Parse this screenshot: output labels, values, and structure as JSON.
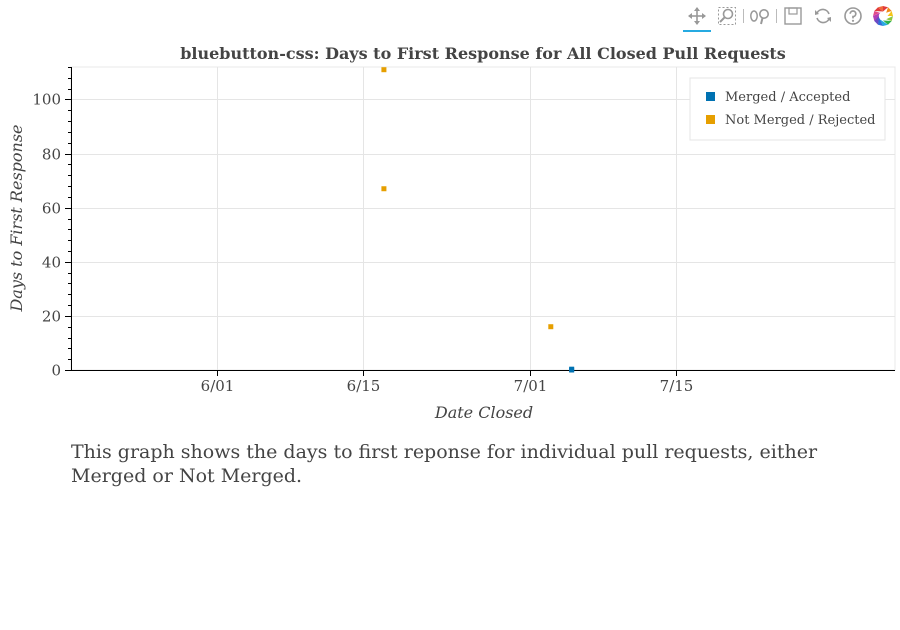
{
  "toolbar": {
    "tools": [
      {
        "name": "pan-icon",
        "active": true
      },
      {
        "name": "box-zoom-icon",
        "active": false
      },
      {
        "name": "wheel-zoom-icon",
        "active": false
      },
      {
        "name": "save-icon",
        "active": false
      },
      {
        "name": "reset-icon",
        "active": false
      },
      {
        "name": "help-icon",
        "active": false
      },
      {
        "name": "bokeh-logo-icon",
        "active": false
      }
    ]
  },
  "chart_data": {
    "type": "scatter",
    "title": "bluebutton-css: Days to First Response for All Closed Pull Requests",
    "xlabel": "Date Closed",
    "ylabel": "Days to First Response",
    "x_axis_type": "date",
    "xlim": [
      "2017-05-18",
      "2017-08-05"
    ],
    "ylim": [
      0,
      112
    ],
    "x_tick_labels": [
      {
        "date": "2017-06-01",
        "label": "6/01"
      },
      {
        "date": "2017-06-15",
        "label": "6/15"
      },
      {
        "date": "2017-07-01",
        "label": "7/01"
      },
      {
        "date": "2017-07-15",
        "label": "7/15"
      }
    ],
    "y_ticks": [
      0,
      20,
      40,
      60,
      80,
      100
    ],
    "grid": true,
    "legend_position": "top-right",
    "series": [
      {
        "name": "Merged / Accepted",
        "color": "#0072b2",
        "points": [
          {
            "x": "2017-07-05",
            "y": 0
          },
          {
            "x": "2017-07-05",
            "y": 0.3
          }
        ]
      },
      {
        "name": "Not Merged / Rejected",
        "color": "#e69f00",
        "points": [
          {
            "x": "2017-06-17",
            "y": 111
          },
          {
            "x": "2017-06-17",
            "y": 67
          },
          {
            "x": "2017-07-03",
            "y": 16
          }
        ]
      }
    ]
  },
  "description": "This graph shows the days to first reponse for individual pull requests, either Merged or Not Merged."
}
